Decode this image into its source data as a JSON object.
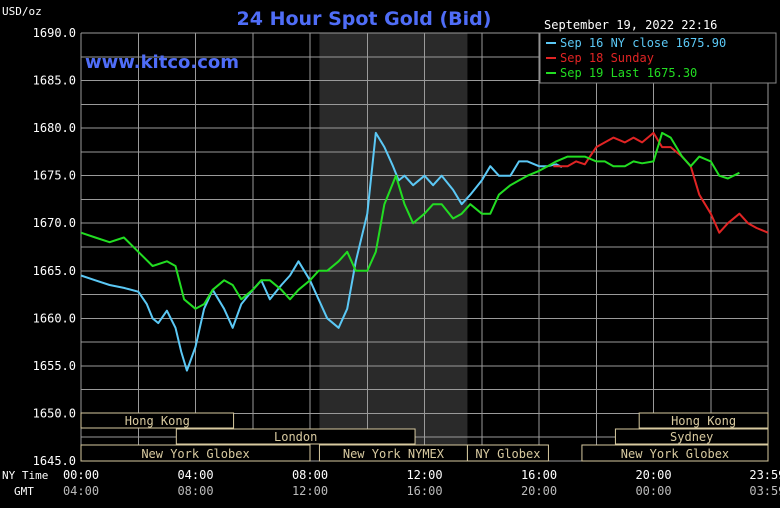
{
  "header": {
    "unit_label": "USD/oz",
    "title": "24 Hour Spot Gold (Bid)",
    "timestamp": "September 19, 2022 22:16",
    "watermark": "www.kitco.com"
  },
  "legend": [
    {
      "label": "Sep 16 NY close 1675.90",
      "color": "#5bc8f5"
    },
    {
      "label": "Sep 18 Sunday",
      "color": "#e02424"
    },
    {
      "label": "Sep 19 Last 1675.30",
      "color": "#22dd22"
    }
  ],
  "axis": {
    "y_ticks": [
      "1690.0",
      "1685.0",
      "1680.0",
      "1675.0",
      "1670.0",
      "1665.0",
      "1660.0",
      "1655.0",
      "1650.0",
      "1645.0"
    ],
    "time_row1_label": "NY Time",
    "time_row2_label": "GMT",
    "time_row1": [
      "00:00",
      "04:00",
      "08:00",
      "12:00",
      "16:00",
      "20:00",
      "23:59"
    ],
    "time_row2": [
      "04:00",
      "08:00",
      "12:00",
      "16:00",
      "20:00",
      "00:00",
      "03:59"
    ]
  },
  "sessions": {
    "row1": [
      {
        "label": "Hong Kong",
        "start": 0,
        "end": 5.33
      },
      {
        "label": "Hong Kong",
        "start": 19.5,
        "end": 24
      }
    ],
    "row2": [
      {
        "label": "London",
        "start": 3.33,
        "end": 11.67
      },
      {
        "label": "Sydney",
        "start": 18.67,
        "end": 24
      }
    ],
    "row3": [
      {
        "label": "New York Globex",
        "start": 0,
        "end": 8
      },
      {
        "label": "New York NYMEX",
        "start": 8.33,
        "end": 13.5
      },
      {
        "label": "NY Globex",
        "start": 13.5,
        "end": 16.33
      },
      {
        "label": "New York Globex",
        "start": 17.5,
        "end": 24
      }
    ]
  },
  "colors": {
    "background": "#000000",
    "grid": "#9a9a9a",
    "shade": "#2a2a2a",
    "title": "#4f6df7",
    "watermark": "#4f6df7",
    "text": "#ffffff",
    "session_box": "#d8caa0"
  },
  "chart_data": {
    "type": "line",
    "x_unit": "NY time (hours)",
    "xlim": [
      0,
      24
    ],
    "ylim": [
      1645,
      1690
    ],
    "ylabel": "USD/oz",
    "shaded_x_range": [
      8.33,
      13.5
    ],
    "grid": true,
    "legend_position": "top-right",
    "series": [
      {
        "name": "Sep 16 NY close 1675.90",
        "color": "#5bc8f5",
        "x": [
          0,
          0.5,
          1,
          1.5,
          2,
          2.3,
          2.5,
          2.7,
          3,
          3.3,
          3.5,
          3.7,
          4,
          4.3,
          4.6,
          5,
          5.3,
          5.6,
          6,
          6.3,
          6.6,
          7,
          7.3,
          7.6,
          8,
          8.3,
          8.6,
          9,
          9.3,
          9.6,
          10,
          10.3,
          10.6,
          10.9,
          11.1,
          11.3,
          11.6,
          12,
          12.3,
          12.6,
          13,
          13.3,
          13.6,
          14,
          14.3,
          14.6,
          15,
          15.3,
          15.6,
          16,
          16.3,
          16.6,
          16.8
        ],
        "y": [
          1664.5,
          1664,
          1663.5,
          1663.2,
          1662.8,
          1661.5,
          1660,
          1659.5,
          1660.8,
          1659,
          1656.5,
          1654.5,
          1657,
          1661,
          1663,
          1661,
          1659,
          1661.5,
          1663,
          1664,
          1662,
          1663.5,
          1664.5,
          1666,
          1664,
          1662,
          1660,
          1659,
          1661,
          1666,
          1671,
          1679.5,
          1678,
          1676,
          1674.5,
          1675,
          1674,
          1675,
          1674,
          1675,
          1673.5,
          1672,
          1673,
          1674.5,
          1676,
          1675,
          1675,
          1676.5,
          1676.5,
          1676,
          1676,
          1676.2,
          1675.9
        ]
      },
      {
        "name": "Sep 18 Sunday",
        "color": "#e02424",
        "x": [
          16.5,
          17,
          17.3,
          17.6,
          18,
          18.3,
          18.6,
          19,
          19.3,
          19.6,
          20,
          20.3,
          20.6,
          21,
          21.3,
          21.6,
          22,
          22.3,
          22.6,
          23,
          23.3,
          23.6,
          24
        ],
        "y": [
          1676,
          1676,
          1676.5,
          1676.2,
          1678,
          1678.5,
          1679,
          1678.5,
          1679,
          1678.5,
          1679.5,
          1678,
          1678,
          1677,
          1676,
          1673,
          1671,
          1669,
          1670,
          1671,
          1670,
          1669.5,
          1669
        ]
      },
      {
        "name": "Sep 19 Last 1675.30",
        "color": "#22dd22",
        "x": [
          0,
          0.5,
          1,
          1.5,
          2,
          2.5,
          3,
          3.3,
          3.6,
          4,
          4.3,
          4.6,
          5,
          5.3,
          5.6,
          6,
          6.3,
          6.6,
          7,
          7.3,
          7.6,
          8,
          8.3,
          8.6,
          9,
          9.3,
          9.6,
          10,
          10.3,
          10.6,
          11,
          11.3,
          11.6,
          12,
          12.3,
          12.6,
          13,
          13.3,
          13.6,
          14,
          14.3,
          14.6,
          15,
          15.3,
          15.6,
          16,
          16.3,
          16.6,
          17,
          17.3,
          17.6,
          18,
          18.3,
          18.6,
          19,
          19.3,
          19.6,
          20,
          20.3,
          20.6,
          21,
          21.3,
          21.6,
          22,
          22.3,
          22.6,
          23
        ],
        "y": [
          1669,
          1668.5,
          1668,
          1668.5,
          1667,
          1665.5,
          1666,
          1665.5,
          1662,
          1661,
          1661.5,
          1663,
          1664,
          1663.5,
          1662,
          1663,
          1664,
          1664,
          1663,
          1662,
          1663,
          1664,
          1665,
          1665,
          1666,
          1667,
          1665,
          1665,
          1667,
          1672,
          1675,
          1672,
          1670,
          1671,
          1672,
          1672,
          1670.5,
          1671,
          1672,
          1671,
          1671,
          1673,
          1674,
          1674.5,
          1675,
          1675.5,
          1676,
          1676.5,
          1677,
          1677,
          1677,
          1676.5,
          1676.5,
          1676,
          1676,
          1676.5,
          1676.3,
          1676.5,
          1679.5,
          1679,
          1677,
          1676,
          1677,
          1676.5,
          1675,
          1674.7,
          1675.3
        ]
      }
    ]
  }
}
